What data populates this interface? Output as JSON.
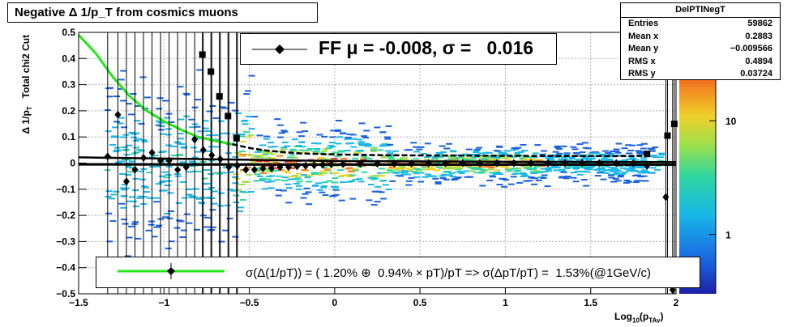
{
  "title": "Negative Δ 1/p_T  from cosmics muons",
  "stats": {
    "name": "DelPTlNegT",
    "rows": [
      {
        "label": "Entries",
        "value": "59862"
      },
      {
        "label": "Mean x",
        "value": "0.2883"
      },
      {
        "label": "Mean y",
        "value": "−0.009566"
      },
      {
        "label": "RMS x",
        "value": "0.4894"
      },
      {
        "label": "RMS y",
        "value": "0.03724"
      }
    ]
  },
  "ff_legend": "FF μ = -0.008, σ =   0.016",
  "fit_legend": "σ(Δ(1/pT)) = ( 1.20% ⊕  0.94% × pT)/pT => σ(ΔpT/pT) =  1.53%(@1GeV/c)",
  "colors": {
    "fit_curve": "#22e81a",
    "markers": "#000000"
  },
  "chart_data": {
    "type": "scatter",
    "title": "Negative Δ 1/p_T  from cosmics muons",
    "xlabel": "Log10(pTAv)",
    "ylabel": "Δ 1/pT   Total chi2 Cut",
    "xlim": [
      -1.5,
      2
    ],
    "ylim": [
      -0.5,
      0.5
    ],
    "xticks": [
      -1.5,
      -1,
      -0.5,
      0,
      0.5,
      1,
      1.5,
      2
    ],
    "xtick_labels": [
      "−1.5",
      "−1",
      "−0.5",
      "0",
      "0.5",
      "1",
      "1.5",
      "2"
    ],
    "yticks": [
      -0.5,
      -0.4,
      -0.3,
      -0.2,
      -0.1,
      0,
      0.1,
      0.2,
      0.3,
      0.4,
      0.5
    ],
    "ytick_labels": [
      "−0.5",
      "−0.4",
      "−0.3",
      "−0.2",
      "−0.1",
      "0",
      "0.1",
      "0.2",
      "0.3",
      "0.4",
      "0.5"
    ],
    "colorbar_labels": [
      {
        "value": 10,
        "label": "10"
      },
      {
        "value": 1,
        "label": "1"
      }
    ],
    "grid": true,
    "series": [
      {
        "name": "squares",
        "marker": "square",
        "points": [
          {
            "x": -0.775,
            "y": 0.415
          },
          {
            "x": -0.725,
            "y": 0.35
          },
          {
            "x": -0.675,
            "y": 0.255
          },
          {
            "x": -0.625,
            "y": 0.18
          },
          {
            "x": -0.575,
            "y": 0.095
          },
          {
            "x": 1.95,
            "y": 0.105
          },
          {
            "x": 1.99,
            "y": 0.15
          },
          {
            "x": 1.83,
            "y": 0.035
          }
        ]
      },
      {
        "name": "diamonds",
        "marker": "diamond",
        "points": [
          {
            "x": -1.33,
            "y": 0.025
          },
          {
            "x": -1.27,
            "y": 0.185
          },
          {
            "x": -1.22,
            "y": -0.07
          },
          {
            "x": -1.17,
            "y": -0.025
          },
          {
            "x": -1.12,
            "y": 0.02
          },
          {
            "x": -1.07,
            "y": 0.04
          },
          {
            "x": -1.02,
            "y": 0.01
          },
          {
            "x": -0.97,
            "y": 0.01
          },
          {
            "x": -0.92,
            "y": -0.025
          },
          {
            "x": -0.87,
            "y": -0.015
          },
          {
            "x": -0.82,
            "y": 0.09
          },
          {
            "x": -0.77,
            "y": 0.05
          },
          {
            "x": -0.72,
            "y": 0.03
          },
          {
            "x": -0.67,
            "y": 0.015
          },
          {
            "x": -0.62,
            "y": -0.015
          },
          {
            "x": -0.57,
            "y": -0.01
          },
          {
            "x": -0.52,
            "y": -0.025
          },
          {
            "x": -0.47,
            "y": -0.025
          },
          {
            "x": -0.42,
            "y": -0.02
          },
          {
            "x": -0.37,
            "y": -0.02
          },
          {
            "x": -0.32,
            "y": -0.015
          },
          {
            "x": -0.27,
            "y": -0.015
          },
          {
            "x": -0.22,
            "y": -0.012
          },
          {
            "x": -0.17,
            "y": -0.01
          },
          {
            "x": -0.12,
            "y": -0.008
          },
          {
            "x": -0.07,
            "y": -0.006
          },
          {
            "x": -0.02,
            "y": -0.005
          },
          {
            "x": 0.05,
            "y": -0.004
          },
          {
            "x": 0.15,
            "y": -0.003
          },
          {
            "x": 0.25,
            "y": -0.002
          },
          {
            "x": 0.35,
            "y": -0.002
          },
          {
            "x": 0.45,
            "y": -0.001
          },
          {
            "x": 0.55,
            "y": -0.001
          },
          {
            "x": 0.65,
            "y": -0.001
          },
          {
            "x": 0.75,
            "y": 0.0
          },
          {
            "x": 0.85,
            "y": 0.0
          },
          {
            "x": 0.95,
            "y": 0.0
          },
          {
            "x": 1.05,
            "y": 0.0
          },
          {
            "x": 1.15,
            "y": 0.0
          },
          {
            "x": 1.25,
            "y": 0.0
          },
          {
            "x": 1.35,
            "y": 0.0
          },
          {
            "x": 1.45,
            "y": 0.0
          },
          {
            "x": 1.55,
            "y": 0.0
          },
          {
            "x": 1.65,
            "y": 0.0
          },
          {
            "x": 1.75,
            "y": 0.0
          },
          {
            "x": 1.83,
            "y": -0.01
          },
          {
            "x": 1.94,
            "y": -0.13
          },
          {
            "x": 1.98,
            "y": -0.485
          }
        ]
      }
    ],
    "fit_curve_green": [
      {
        "x": -1.5,
        "y": 0.49
      },
      {
        "x": -1.4,
        "y": 0.42
      },
      {
        "x": -1.3,
        "y": 0.33
      },
      {
        "x": -1.2,
        "y": 0.255
      },
      {
        "x": -1.1,
        "y": 0.2
      },
      {
        "x": -1.0,
        "y": 0.16
      },
      {
        "x": -0.9,
        "y": 0.128
      },
      {
        "x": -0.8,
        "y": 0.1
      },
      {
        "x": -0.7,
        "y": 0.085
      },
      {
        "x": -0.6,
        "y": 0.072
      }
    ],
    "fit_curve_black_dashed": [
      {
        "x": -0.6,
        "y": 0.072
      },
      {
        "x": -0.5,
        "y": 0.058
      },
      {
        "x": -0.4,
        "y": 0.048
      },
      {
        "x": -0.3,
        "y": 0.042
      },
      {
        "x": -0.2,
        "y": 0.037
      },
      {
        "x": 0.0,
        "y": 0.033
      },
      {
        "x": 0.3,
        "y": 0.03
      },
      {
        "x": 0.6,
        "y": 0.029
      },
      {
        "x": 1.0,
        "y": 0.028
      },
      {
        "x": 1.5,
        "y": 0.027
      },
      {
        "x": 1.8,
        "y": 0.027
      }
    ],
    "fit_curve_black_lower": [
      {
        "x": -1.5,
        "y": -0.005
      },
      {
        "x": 0.0,
        "y": -0.006
      },
      {
        "x": 1.0,
        "y": -0.006
      },
      {
        "x": 2.0,
        "y": -0.006
      }
    ],
    "fit_curve_black_upper": [
      {
        "x": -1.5,
        "y": 0.022
      },
      {
        "x": 0.0,
        "y": 0.008
      },
      {
        "x": 1.0,
        "y": 0.005
      },
      {
        "x": 2.0,
        "y": 0.004
      }
    ]
  }
}
